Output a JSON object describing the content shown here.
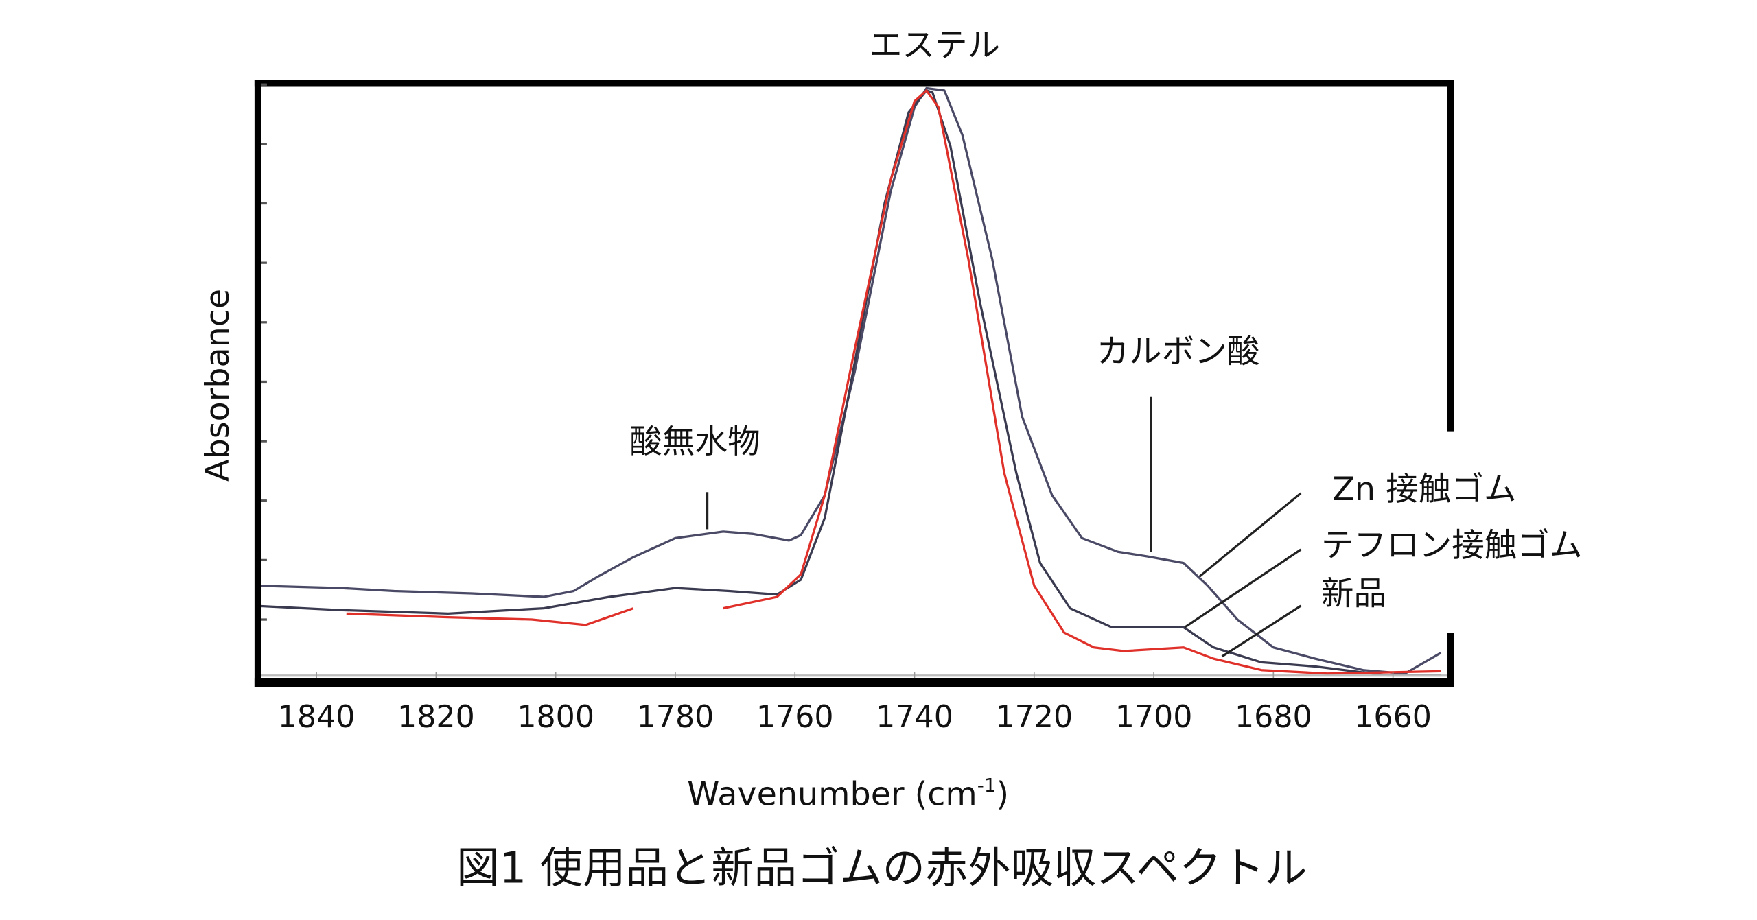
{
  "chart_data": {
    "type": "line",
    "title": "図1 使用品と新品ゴムの赤外吸収スペクトル",
    "xlabel": "Wavenumber (cm",
    "xlabel_sup": "-1",
    "xlabel_close": ")",
    "ylabel": "Absorbance",
    "xlim": [
      1850,
      1650
    ],
    "ylim": [
      0,
      1
    ],
    "x_reversed": true,
    "grid": false,
    "xticks": [
      1840,
      1820,
      1800,
      1780,
      1760,
      1740,
      1720,
      1700,
      1680,
      1660
    ],
    "annotations": [
      {
        "text": "エステル",
        "x": 1737
      },
      {
        "text": "酸無水物",
        "x": 1775
      },
      {
        "text": "カルボン酸",
        "x": 1700
      }
    ],
    "series": [
      {
        "name": "Zn 接触ゴム",
        "color": "#4a4a66",
        "x": [
          1850,
          1836,
          1827,
          1814,
          1802,
          1797,
          1793,
          1787,
          1780,
          1772,
          1767,
          1761,
          1759,
          1755,
          1750,
          1744,
          1740,
          1738,
          1735,
          1732,
          1727,
          1722,
          1717,
          1712,
          1706,
          1701,
          1695,
          1691,
          1686,
          1680,
          1673,
          1665,
          1658,
          1652
        ],
        "y": [
          0.157,
          0.153,
          0.148,
          0.144,
          0.138,
          0.148,
          0.172,
          0.205,
          0.237,
          0.248,
          0.244,
          0.233,
          0.242,
          0.309,
          0.517,
          0.82,
          0.962,
          0.994,
          0.99,
          0.915,
          0.706,
          0.441,
          0.309,
          0.237,
          0.214,
          0.206,
          0.195,
          0.157,
          0.1,
          0.053,
          0.034,
          0.015,
          0.009,
          0.044
        ]
      },
      {
        "name": "テフロン接触ゴム",
        "color": "#3a3a50",
        "x": [
          1850,
          1836,
          1818,
          1802,
          1791,
          1780,
          1771,
          1763,
          1759,
          1755,
          1751,
          1745,
          1741,
          1738,
          1737,
          1734,
          1729,
          1723,
          1719,
          1714,
          1707,
          1695,
          1690,
          1682,
          1673,
          1661,
          1652
        ],
        "y": [
          0.123,
          0.116,
          0.11,
          0.119,
          0.138,
          0.153,
          0.148,
          0.142,
          0.167,
          0.271,
          0.479,
          0.801,
          0.953,
          0.99,
          0.987,
          0.896,
          0.631,
          0.347,
          0.195,
          0.119,
          0.087,
          0.087,
          0.053,
          0.028,
          0.021,
          0.006,
          0.006
        ]
      },
      {
        "name": "新品",
        "color": "#e0302a",
        "x": [
          1835,
          1818,
          1804,
          1795,
          1787,
          null,
          1772,
          1763,
          1759,
          1755,
          1750,
          1744,
          1740,
          1738,
          1736,
          1731,
          1725,
          1720,
          1715,
          1710,
          1705,
          1695,
          1690,
          1682,
          1671,
          1652
        ],
        "y": [
          0.11,
          0.104,
          0.1,
          0.091,
          0.119,
          null,
          0.119,
          0.138,
          0.176,
          0.309,
          0.555,
          0.839,
          0.972,
          0.99,
          0.962,
          0.706,
          0.347,
          0.157,
          0.078,
          0.053,
          0.047,
          0.053,
          0.034,
          0.015,
          0.009,
          0.013
        ]
      }
    ]
  }
}
